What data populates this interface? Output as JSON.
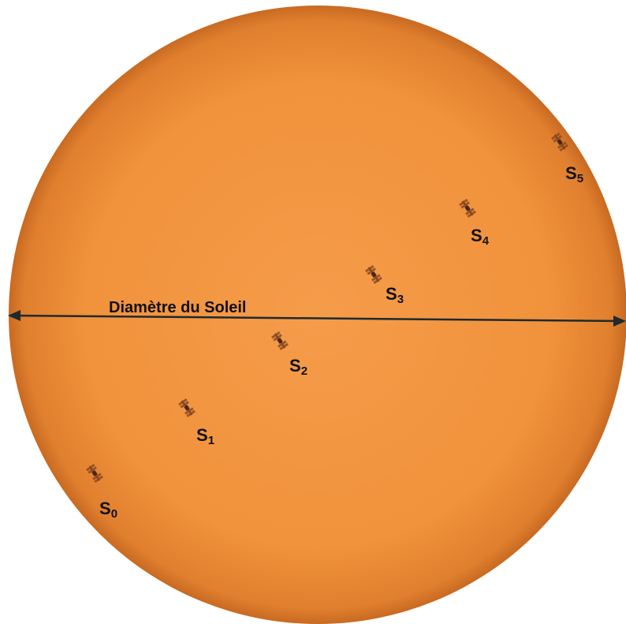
{
  "annotation": {
    "diameter_label": "Diamètre du Soleil"
  },
  "positions": [
    {
      "label": "S",
      "subscript": "0"
    },
    {
      "label": "S",
      "subscript": "1"
    },
    {
      "label": "S",
      "subscript": "2"
    },
    {
      "label": "S",
      "subscript": "3"
    },
    {
      "label": "S",
      "subscript": "4"
    },
    {
      "label": "S",
      "subscript": "5"
    }
  ]
}
